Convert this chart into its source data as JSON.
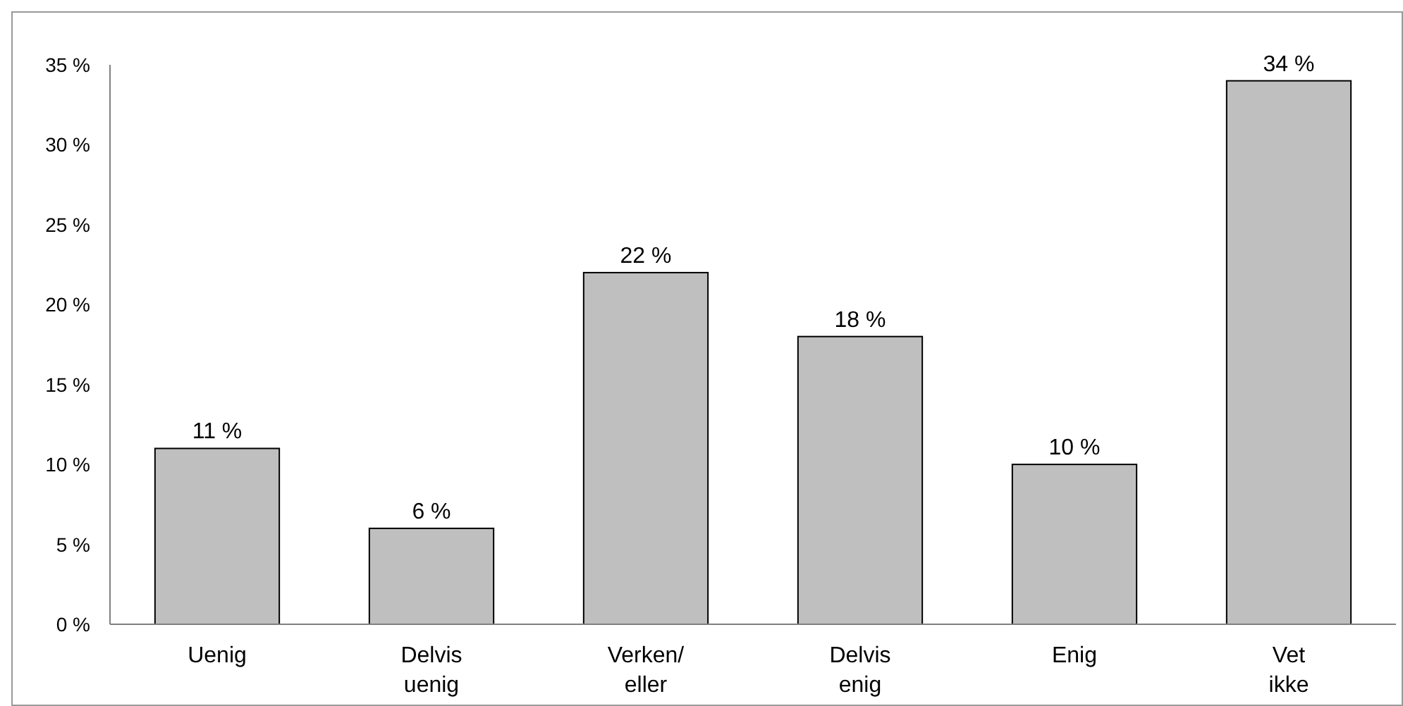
{
  "chart_data": {
    "type": "bar",
    "categories": [
      "Uenig",
      "Delvis\nuenig",
      "Verken/\neller",
      "Delvis\nenig",
      "Enig",
      "Vet\nikke"
    ],
    "values": [
      11,
      6,
      22,
      18,
      10,
      34
    ],
    "value_labels": [
      "11 %",
      "6 %",
      "22 %",
      "18 %",
      "10 %",
      "34 %"
    ],
    "color": "#bfbfbf",
    "ylim": [
      0,
      35
    ],
    "yticks": [
      {
        "value": 0,
        "label": "0 %"
      },
      {
        "value": 5,
        "label": "5 %"
      },
      {
        "value": 10,
        "label": "10 %"
      },
      {
        "value": 15,
        "label": "15 %"
      },
      {
        "value": 20,
        "label": "20 %"
      },
      {
        "value": 25,
        "label": "25 %"
      },
      {
        "value": 30,
        "label": "30 %"
      },
      {
        "value": 35,
        "label": "35 %"
      }
    ],
    "grid": false
  }
}
